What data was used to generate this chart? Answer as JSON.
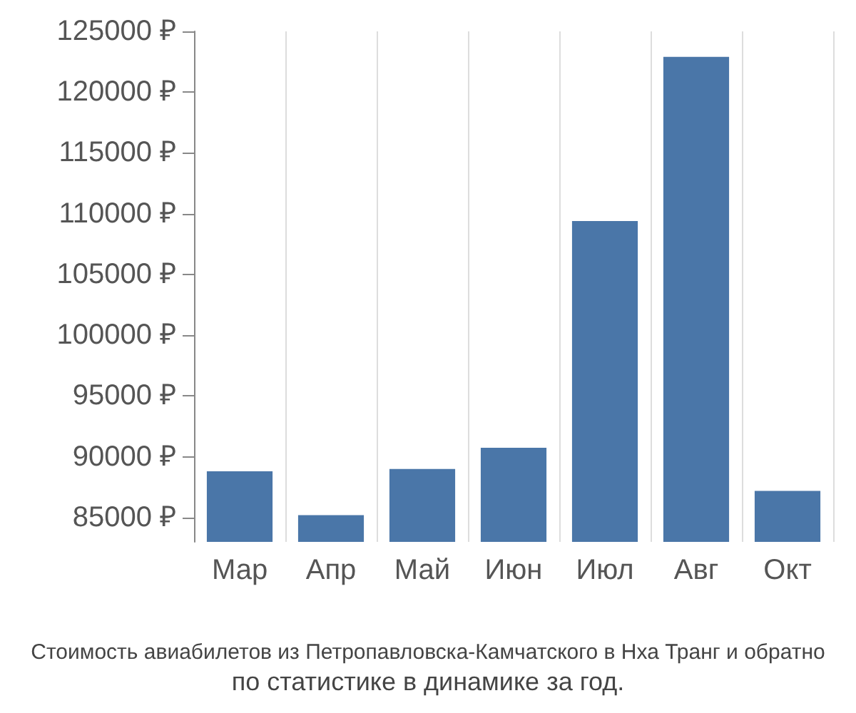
{
  "chart_data": {
    "type": "bar",
    "title": "Стоимость авиабилетов из Петропавловска-Камчатского в Нха Транг и обратно",
    "subtitle": "по статистике в динамике за год.",
    "categories": [
      "Мар",
      "Апр",
      "Май",
      "Июн",
      "Июл",
      "Авг",
      "Окт"
    ],
    "values": [
      88800,
      85200,
      89000,
      90750,
      109400,
      122900,
      87200
    ],
    "color": "#4a76a8",
    "ylim": [
      83000,
      125000
    ],
    "yticks": [
      {
        "value": 85000,
        "label": "85000 ₽"
      },
      {
        "value": 90000,
        "label": "90000 ₽"
      },
      {
        "value": 95000,
        "label": "95000 ₽"
      },
      {
        "value": 100000,
        "label": "100000 ₽"
      },
      {
        "value": 105000,
        "label": "105000 ₽"
      },
      {
        "value": 110000,
        "label": "110000 ₽"
      },
      {
        "value": 115000,
        "label": "115000 ₽"
      },
      {
        "value": 120000,
        "label": "120000 ₽"
      },
      {
        "value": 125000,
        "label": "125000 ₽"
      }
    ],
    "grid": "x"
  }
}
